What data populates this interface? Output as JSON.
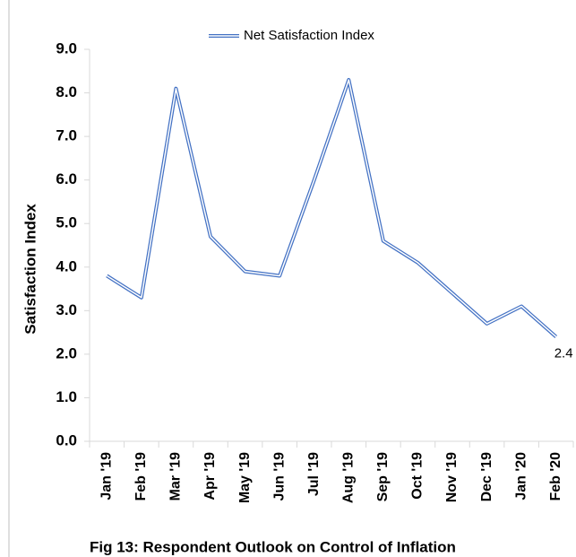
{
  "chart_data": {
    "type": "line",
    "title": "Fig 13: Respondent Outlook on Control of Inflation",
    "y_label": "Satisfaction Index",
    "categories": [
      "Jan '19",
      "Feb '19",
      "Mar '19",
      "Apr '19",
      "May '19",
      "Jun '19",
      "Jul '19",
      "Aug '19",
      "Sep '19",
      "Oct '19",
      "Nov '19",
      "Dec '19",
      "Jan '20",
      "Feb '20"
    ],
    "series": [
      {
        "name": "Net Satisfaction Index",
        "color": "#4472c4",
        "values": [
          3.8,
          3.3,
          8.1,
          4.7,
          3.9,
          3.8,
          6.0,
          8.3,
          4.6,
          4.1,
          3.4,
          2.7,
          3.1,
          2.4
        ]
      }
    ],
    "ylim": [
      0,
      9
    ],
    "yticks": [
      {
        "value": 0,
        "label": "0.0"
      },
      {
        "value": 1,
        "label": "1.0"
      },
      {
        "value": 2,
        "label": "2.0"
      },
      {
        "value": 3,
        "label": "3.0"
      },
      {
        "value": 4,
        "label": "4.0"
      },
      {
        "value": 5,
        "label": "5.0"
      },
      {
        "value": 6,
        "label": "6.0"
      },
      {
        "value": 7,
        "label": "7.0"
      },
      {
        "value": 8,
        "label": "8.0"
      },
      {
        "value": 9,
        "label": "9.0"
      }
    ],
    "grid": false,
    "legend": "top"
  }
}
